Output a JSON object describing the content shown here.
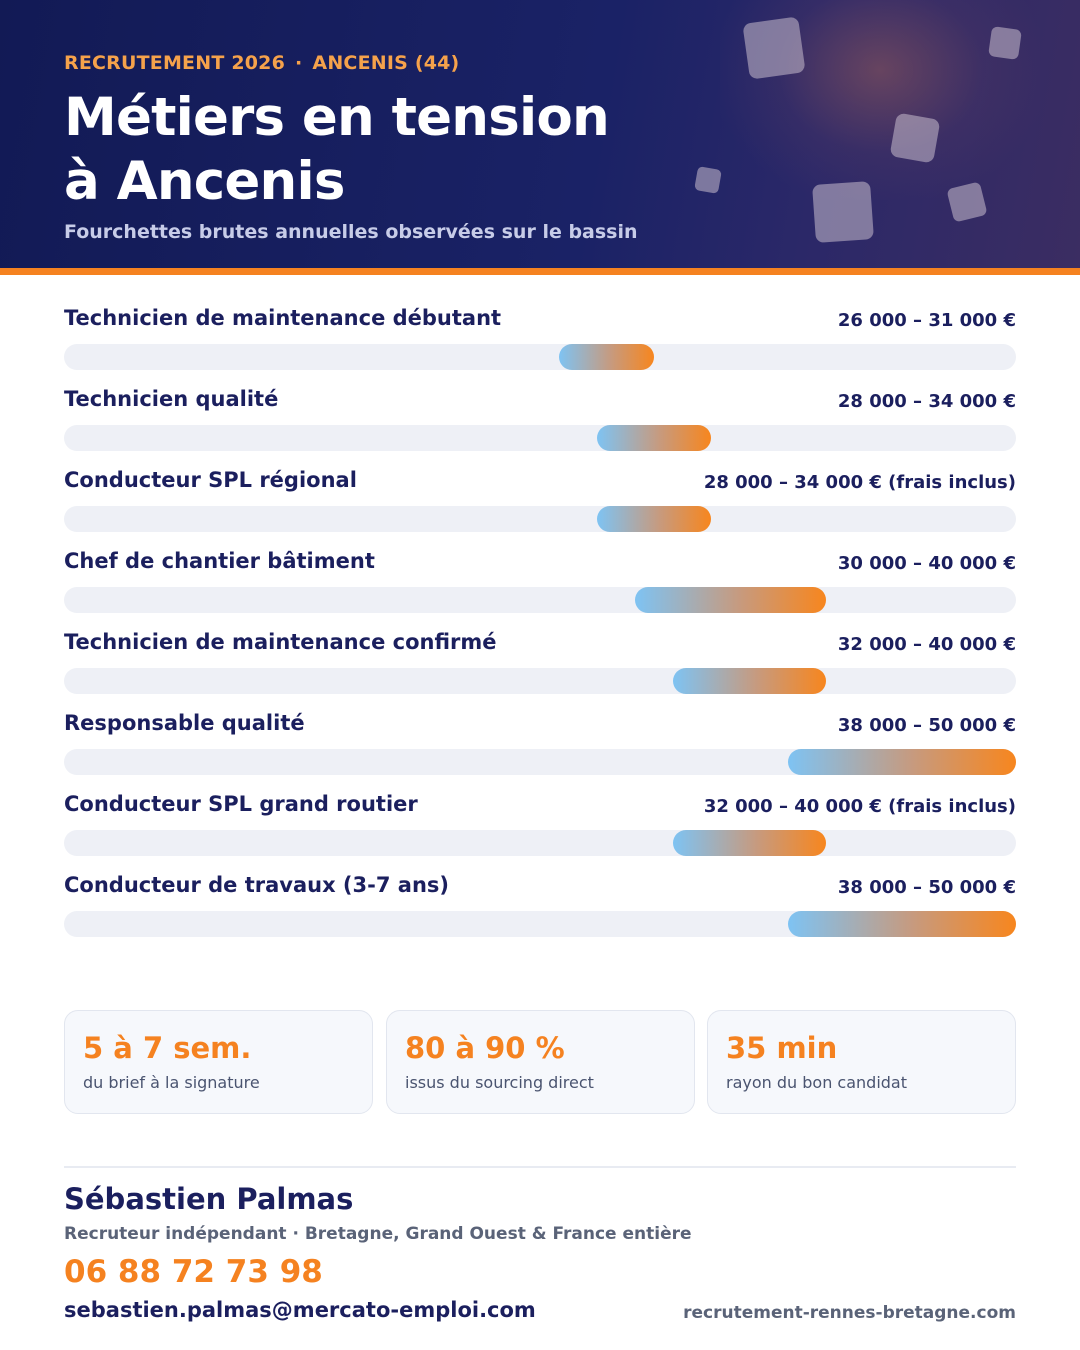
{
  "header": {
    "kicker_left": "RECRUTEMENT 2026",
    "kicker_sep": "·",
    "kicker_right": "ANCENIS (44)",
    "title_line1": "Métiers en tension",
    "title_line2": "à Ancenis",
    "subtitle": "Fourchettes brutes annuelles observées sur le bassin",
    "colors": {
      "background": "#121a55",
      "kicker": "#f5a24b",
      "rule": "#f58220"
    }
  },
  "chart_data": {
    "type": "bar",
    "orientation": "horizontal-range",
    "title": "Métiers en tension à Ancenis",
    "subtitle": "Fourchettes brutes annuelles observées sur le bassin",
    "xlim": [
      0,
      50000
    ],
    "grid": false,
    "categories": [
      "Technicien de maintenance débutant",
      "Technicien qualité",
      "Conducteur SPL régional",
      "Chef de chantier bâtiment",
      "Technicien de maintenance confirmé",
      "Responsable qualité",
      "Conducteur SPL grand routier",
      "Conducteur de travaux (3-7 ans)"
    ],
    "series": [
      {
        "name": "",
        "min": [
          26000,
          28000,
          28000,
          30000,
          32000,
          38000,
          32000,
          38000
        ],
        "max": [
          31000,
          34000,
          34000,
          40000,
          40000,
          50000,
          40000,
          50000
        ]
      }
    ],
    "value_labels": [
      "26 000 – 31 000 €",
      "28 000 – 34 000 €",
      "28 000 – 34 000 € (frais inclus)",
      "30 000 – 40 000 €",
      "32 000 – 40 000 €",
      "38 000 – 50 000 €",
      "32 000 – 40 000 € (frais inclus)",
      "38 000 – 50 000 €"
    ],
    "colors": {
      "track": "#eef0f6",
      "range_start": "#7ec3f3",
      "range_end": "#f7861e"
    }
  },
  "stats": [
    {
      "value": "5 à 7 sem.",
      "label": "du brief à la signature"
    },
    {
      "value": "80 à 90 %",
      "label": "issus du sourcing direct"
    },
    {
      "value": "35 min",
      "label": "rayon du bon candidat"
    }
  ],
  "footer": {
    "name": "Sébastien Palmas",
    "role": "Recruteur indépendant · Bretagne, Grand Ouest & France entière",
    "phone": "06 88 72 73 98",
    "email": "sebastien.palmas@mercato-emploi.com",
    "website": "recrutement-rennes-bretagne.com"
  }
}
